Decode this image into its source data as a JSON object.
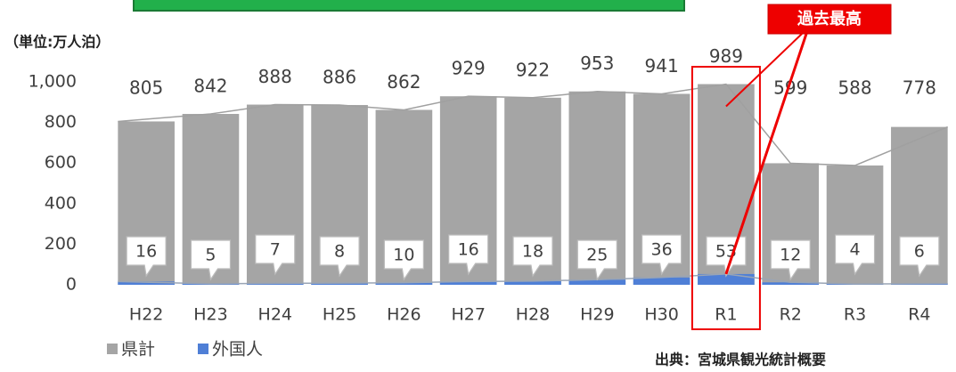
{
  "chart_data": {
    "type": "bar",
    "unit_label": "（単位:万人泊）",
    "annotation": "過去最高",
    "source": "出典：宮城県観光統計概要",
    "categories": [
      "H22",
      "H23",
      "H24",
      "H25",
      "H26",
      "H27",
      "H28",
      "H29",
      "H30",
      "R1",
      "R2",
      "R3",
      "R4"
    ],
    "series": [
      {
        "name": "県計",
        "color": "#a5a5a5",
        "values": [
          805,
          842,
          888,
          886,
          862,
          929,
          922,
          953,
          941,
          989,
          599,
          588,
          778
        ]
      },
      {
        "name": "外国人",
        "color": "#4f7fd6",
        "values": [
          16,
          5,
          7,
          8,
          10,
          16,
          18,
          25,
          36,
          53,
          12,
          4,
          6
        ]
      }
    ],
    "ylim": [
      0,
      1000
    ],
    "yticks": [
      0,
      200,
      400,
      600,
      800,
      {
        "value": 1000,
        "label": "1,000"
      }
    ],
    "grid": false
  }
}
